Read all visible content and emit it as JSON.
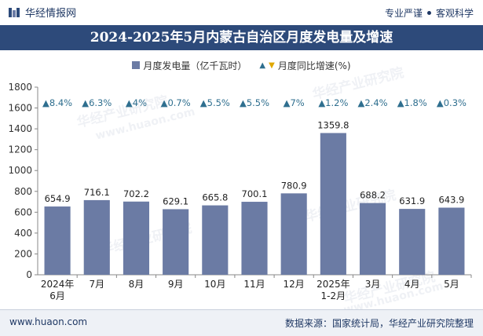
{
  "brand": {
    "name": "华经情报网",
    "tagline_left": "专业严谨",
    "tagline_right": "客观科学"
  },
  "title": "2024-2025年5月内蒙古自治区月度发电量及增速",
  "legend": {
    "bar": "月度发电量（亿千瓦时）",
    "line": "月度同比增速(%)"
  },
  "footer": {
    "url": "www.huaon.com",
    "source": "数据来源：国家统计局，华经产业研究院整理"
  },
  "watermark": {
    "text": "华经产业研究院",
    "url": "www.huaon.com"
  },
  "colors": {
    "bar": "#6b7ba4",
    "growth_up": "#2f6f8f",
    "growth_down": "#e0a800",
    "title_bg": "#2d4a7a"
  },
  "chart_data": {
    "type": "bar",
    "categories": [
      "2024年\n6月",
      "7月",
      "8月",
      "9月",
      "10月",
      "11月",
      "12月",
      "2025年\n1-2月",
      "3月",
      "4月",
      "5月"
    ],
    "series": [
      {
        "name": "月度发电量（亿千瓦时）",
        "values": [
          654.9,
          716.1,
          702.2,
          629.1,
          665.8,
          700.1,
          780.9,
          1359.8,
          688.2,
          631.9,
          643.9
        ]
      }
    ],
    "growth": {
      "name": "月度同比增速(%)",
      "labels": [
        "8.4%",
        "6.3%",
        "4%",
        "0.7%",
        "5.5%",
        "5.5%",
        "7%",
        "1.2%",
        "2.4%",
        "1.8%",
        "0.3%"
      ]
    },
    "y_ticks": [
      0,
      200,
      400,
      600,
      800,
      1000,
      1200,
      1400,
      1600,
      1800
    ],
    "ylim": [
      0,
      1800
    ],
    "grid": false
  }
}
